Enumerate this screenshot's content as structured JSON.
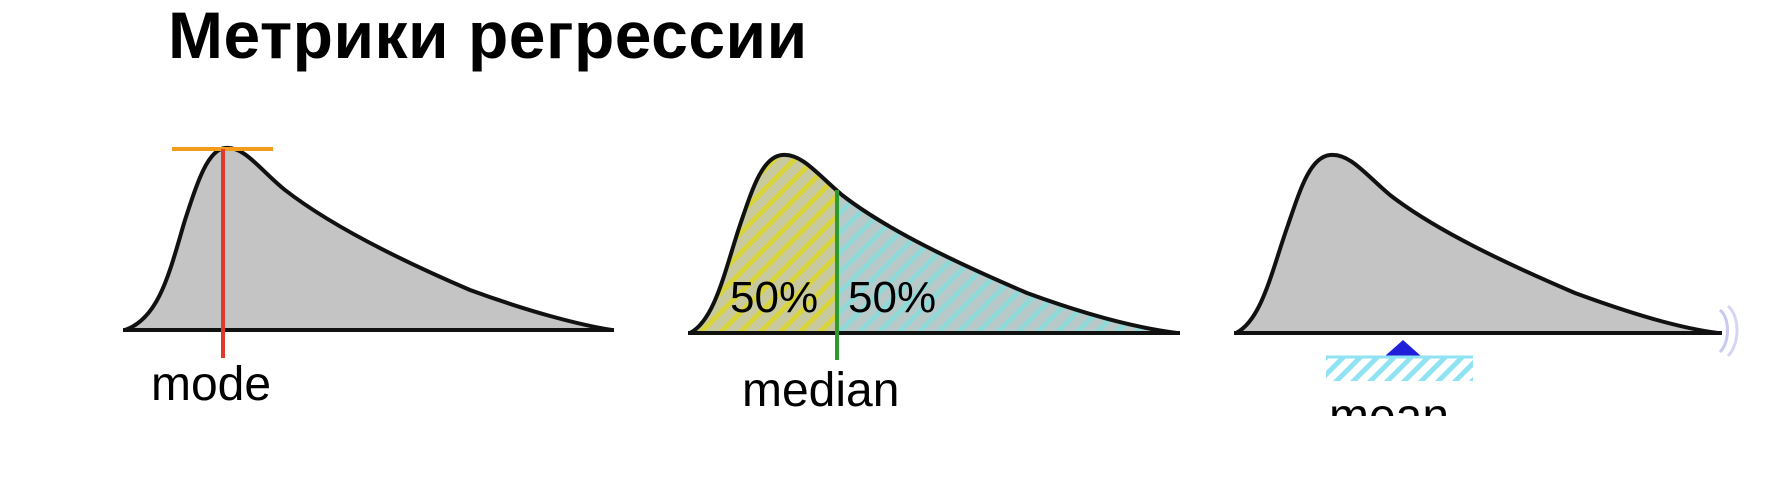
{
  "slide": {
    "title": "Метрики регрессии"
  },
  "panels": {
    "mode": {
      "label": "mode",
      "marker_color": "#e0382b",
      "peak_bar_color": "#f29b1d"
    },
    "median": {
      "label": "median",
      "left_share": "50%",
      "right_share": "50%",
      "marker_color": "#2e9a2e",
      "left_hatch_color": "#d8d43a",
      "right_hatch_color": "#8fd9d9"
    },
    "mean": {
      "label": "mean",
      "fulcrum_color": "#1f1fd9",
      "base_hatch_color": "#8fe3f2"
    }
  },
  "colors": {
    "distribution_fill": "#c4c4c4",
    "outline": "#111111"
  }
}
